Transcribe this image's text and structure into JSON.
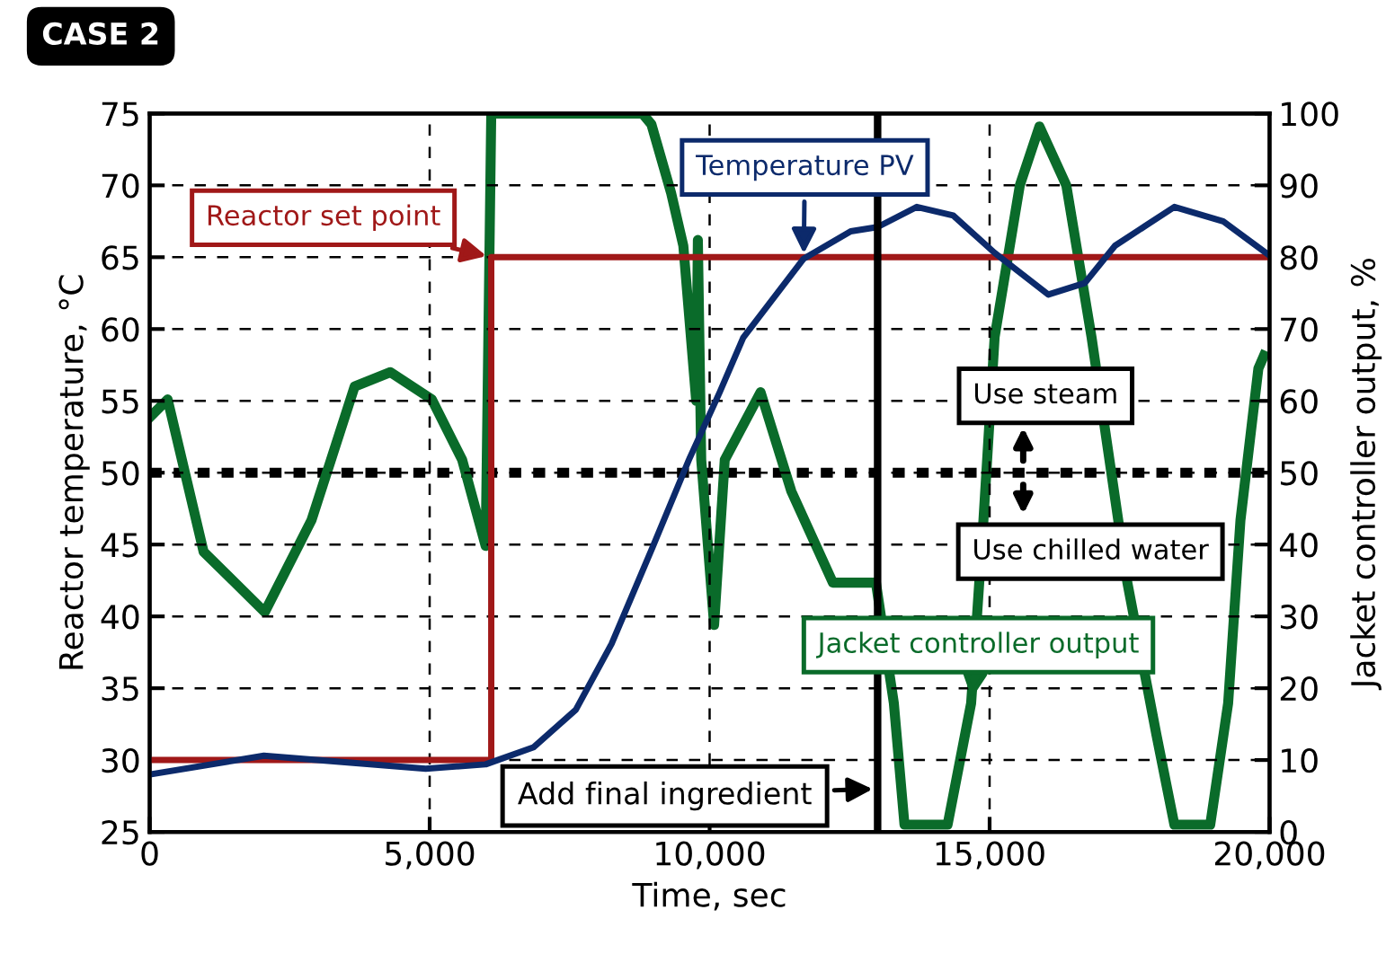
{
  "chart_data": {
    "type": "line",
    "title": "CASE 2",
    "xlabel": "Time, sec",
    "ylabel": "Reactor temperature, °C",
    "y2label": "Jacket controller output, %",
    "xlim": [
      0,
      20000
    ],
    "xticks": [
      0,
      {
        "value": 5000,
        "label": "5,000"
      },
      {
        "value": 10000,
        "label": "10,000"
      },
      {
        "value": 15000,
        "label": "15,000"
      },
      {
        "value": 20000,
        "label": "20,000"
      }
    ],
    "ylim": [
      25,
      75
    ],
    "yticks": [
      25,
      30,
      35,
      40,
      45,
      50,
      55,
      60,
      65,
      70,
      75
    ],
    "y2lim": [
      0,
      100
    ],
    "y2ticks": [
      0,
      10,
      20,
      30,
      40,
      50,
      60,
      70,
      80,
      90,
      100
    ],
    "grid": true,
    "legend": false,
    "series": [
      {
        "name": "Reactor set point",
        "type": "step",
        "color": "#a01818",
        "x": [
          0,
          6100,
          20000
        ],
        "values": [
          30,
          65,
          65
        ]
      },
      {
        "name": "Temperature PV",
        "color": "#0c2a6b",
        "x": [
          0,
          2040,
          4930,
          6000,
          6860,
          7610,
          8250,
          8990,
          9630,
          10180,
          10600,
          11680,
          12520,
          13000,
          13700,
          14350,
          15090,
          16050,
          16700,
          17240,
          18300,
          19170,
          19970
        ],
        "values": [
          29.0,
          30.3,
          29.4,
          29.7,
          30.9,
          33.5,
          38.1,
          44.9,
          50.9,
          55.6,
          59.4,
          64.9,
          66.8,
          67.1,
          68.5,
          67.9,
          65.3,
          62.4,
          63.2,
          65.8,
          68.5,
          67.5,
          65.2
        ]
      },
      {
        "name": "Jacket controller output",
        "axis": "y2",
        "color": "#0a6b2a",
        "x": [
          0,
          321,
          963,
          2055,
          2890,
          3660,
          4300,
          5040,
          5580,
          6000,
          6100,
          8800,
          8960,
          9310,
          9530,
          9760,
          9790,
          9850,
          10080,
          10270,
          10910,
          11460,
          12200,
          12970,
          13290,
          13480,
          14250,
          14670,
          14890,
          15090,
          15540,
          15890,
          16370,
          16820,
          17460,
          17980,
          18300,
          18940,
          19260,
          19480,
          19800,
          19900
        ],
        "values": [
          57.7,
          60.2,
          39,
          30.6,
          43.4,
          62,
          64,
          60.2,
          51.8,
          39.8,
          100,
          100,
          98.5,
          89,
          81.6,
          60,
          82.4,
          51.8,
          28.8,
          51.8,
          61.2,
          47.4,
          34.7,
          34.7,
          17.9,
          1,
          1,
          17.9,
          43.4,
          68.9,
          90,
          98.2,
          90,
          68.9,
          34.7,
          13.5,
          1,
          1,
          17.9,
          43.4,
          64.5,
          66.3
        ]
      }
    ],
    "ref_lines": [
      {
        "axis": "y2",
        "value": 50,
        "line_style": "dotted",
        "color": "#000000"
      },
      {
        "axis": "x",
        "value": 13000,
        "label": "Add final ingredient",
        "line_style": "solid",
        "color": "#000000"
      }
    ],
    "annotations": [
      "Use steam",
      "Use chilled water"
    ]
  }
}
